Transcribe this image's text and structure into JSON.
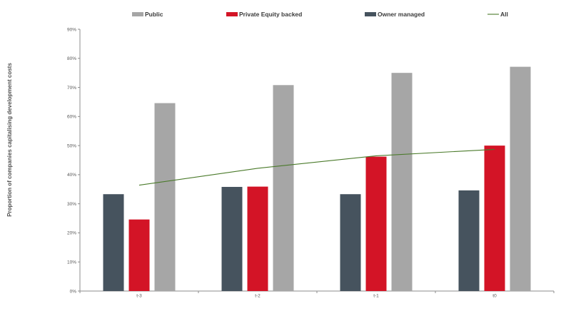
{
  "chart_data": {
    "type": "bar",
    "title": "",
    "xlabel": "",
    "ylabel": "Proportion of companies  capitalising  development  costs",
    "categories": [
      "t-3",
      "t-2",
      "t-1",
      "t0"
    ],
    "ylim": [
      0,
      90
    ],
    "yticks": [
      "0%",
      "10%",
      "20%",
      "30%",
      "40%",
      "50%",
      "60%",
      "70%",
      "80%",
      "90%"
    ],
    "grid": false,
    "legend_position": "top",
    "series": [
      {
        "name": "Owner managed",
        "type": "bar",
        "color": "#46535e",
        "values": [
          33.3,
          35.8,
          33.3,
          34.6
        ]
      },
      {
        "name": "Private Equity backed",
        "type": "bar",
        "color": "#d31426",
        "values": [
          24.6,
          35.9,
          46.2,
          50.0
        ]
      },
      {
        "name": "Public",
        "type": "bar",
        "color": "#a6a6a6",
        "values": [
          64.6,
          70.8,
          75.0,
          77.1
        ]
      },
      {
        "name": "All",
        "type": "line",
        "color": "#4a7a2a",
        "values": [
          36.4,
          42.2,
          46.5,
          48.7
        ]
      }
    ],
    "legend_order": [
      "Public",
      "Private Equity backed",
      "Owner managed",
      "All"
    ]
  }
}
